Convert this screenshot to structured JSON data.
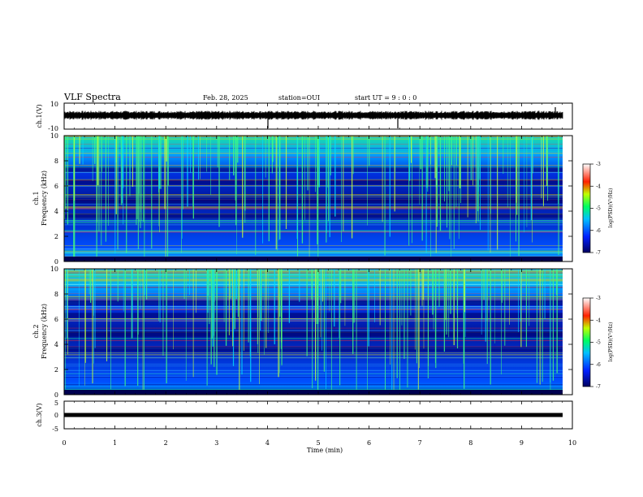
{
  "header": {
    "title": "VLF Spectra",
    "date": "Feb. 28, 2025",
    "station": "station=OUI",
    "start": "start  UT =  9 : 0 : 0"
  },
  "chart_data": [
    {
      "type": "line",
      "title": "",
      "ylabel": "ch.1(V)",
      "ylim": [
        -10,
        10
      ],
      "yticks": [
        "10",
        "-10"
      ],
      "xlim": [
        0,
        10
      ],
      "series": [
        {
          "values_desc": "noisy waveform near 0 V"
        }
      ]
    },
    {
      "type": "heatmap",
      "ylabel_line1": "ch.1",
      "ylabel_line2": "Frequency (kHz)",
      "ylim": [
        0,
        10
      ],
      "yticks": [
        "0",
        "2",
        "4",
        "6",
        "8",
        "10"
      ],
      "xlim": [
        0,
        10
      ],
      "colorbar": {
        "label": "log(PSD)(V²/Hz)",
        "range": [
          -7,
          -3
        ],
        "ticks": [
          "-3",
          "-4",
          "-5",
          "-6",
          "-7"
        ]
      }
    },
    {
      "type": "heatmap",
      "ylabel_line1": "ch.2",
      "ylabel_line2": "Frequency (kHz)",
      "ylim": [
        0,
        10
      ],
      "yticks": [
        "0",
        "2",
        "4",
        "6",
        "8",
        "10"
      ],
      "xlim": [
        0,
        10
      ],
      "colorbar": {
        "label": "log(PSD)(V²/Hz)",
        "range": [
          -7,
          -3
        ],
        "ticks": [
          "-3",
          "-4",
          "-5",
          "-6",
          "-7"
        ]
      }
    },
    {
      "type": "line",
      "ylabel": "ch.3(V)",
      "ylim": [
        -5,
        5
      ],
      "yticks": [
        "5",
        "0",
        "-5"
      ],
      "xlim": [
        0,
        10
      ],
      "series": [
        {
          "values_desc": "flat line at 0 V"
        }
      ]
    }
  ],
  "xaxis": {
    "label": "Time (min)",
    "ticks": [
      "0",
      "1",
      "2",
      "3",
      "4",
      "5",
      "6",
      "7",
      "8",
      "9",
      "10"
    ]
  },
  "colors": {
    "low": "#00007a",
    "mid": "#1e6fff",
    "high": "#00ffb0",
    "line": "#000000"
  }
}
